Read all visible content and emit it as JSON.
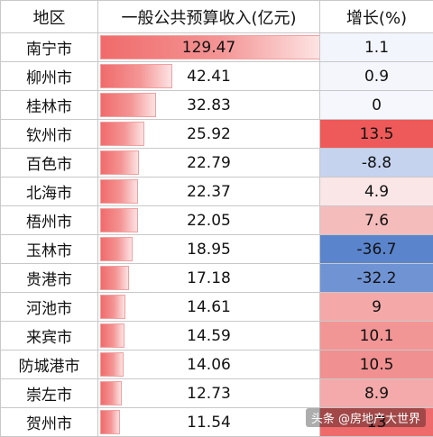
{
  "table": {
    "headers": [
      "地区",
      "一般公共预算收入(亿元)",
      "增长(%)"
    ],
    "max_revenue": 129.47,
    "rows": [
      {
        "region": "南宁市",
        "revenue": 129.47,
        "revenue_label": "129.47",
        "growth": 1.1,
        "growth_label": "1.1",
        "growth_color": "#f2f5fc"
      },
      {
        "region": "柳州市",
        "revenue": 42.41,
        "revenue_label": "42.41",
        "growth": 0.9,
        "growth_label": "0.9",
        "growth_color": "#f4f6fc"
      },
      {
        "region": "桂林市",
        "revenue": 32.83,
        "revenue_label": "32.83",
        "growth": 0,
        "growth_label": "0",
        "growth_color": "#f6f7fc"
      },
      {
        "region": "钦州市",
        "revenue": 25.92,
        "revenue_label": "25.92",
        "growth": 13.5,
        "growth_label": "13.5",
        "growth_color": "#ee5a59"
      },
      {
        "region": "百色市",
        "revenue": 22.79,
        "revenue_label": "22.79",
        "growth": -8.8,
        "growth_label": "-8.8",
        "growth_color": "#c5d3ef"
      },
      {
        "region": "北海市",
        "revenue": 22.37,
        "revenue_label": "22.37",
        "growth": 4.9,
        "growth_label": "4.9",
        "growth_color": "#fae6e7"
      },
      {
        "region": "梧州市",
        "revenue": 22.05,
        "revenue_label": "22.05",
        "growth": 7.6,
        "growth_label": "7.6",
        "growth_color": "#f5bcbc"
      },
      {
        "region": "玉林市",
        "revenue": 18.95,
        "revenue_label": "18.95",
        "growth": -36.7,
        "growth_label": "-36.7",
        "growth_color": "#5a84cc"
      },
      {
        "region": "贵港市",
        "revenue": 17.18,
        "revenue_label": "17.18",
        "growth": -32.2,
        "growth_label": "-32.2",
        "growth_color": "#6f93d3"
      },
      {
        "region": "河池市",
        "revenue": 14.61,
        "revenue_label": "14.61",
        "growth": 9,
        "growth_label": "9",
        "growth_color": "#f4a8a8"
      },
      {
        "region": "来宾市",
        "revenue": 14.59,
        "revenue_label": "14.59",
        "growth": 10.1,
        "growth_label": "10.1",
        "growth_color": "#f29595"
      },
      {
        "region": "防城港市",
        "revenue": 14.06,
        "revenue_label": "14.06",
        "growth": 10.5,
        "growth_label": "10.5",
        "growth_color": "#f19090"
      },
      {
        "region": "崇左市",
        "revenue": 12.73,
        "revenue_label": "12.73",
        "growth": 8.9,
        "growth_label": "8.9",
        "growth_color": "#f4aaaa"
      },
      {
        "region": "贺州市",
        "revenue": 11.54,
        "revenue_label": "11.54",
        "growth": 13,
        "growth_label": "13",
        "growth_color": "#ef6b6b"
      }
    ]
  },
  "watermark": {
    "text": "头条 @房地产大世界"
  }
}
